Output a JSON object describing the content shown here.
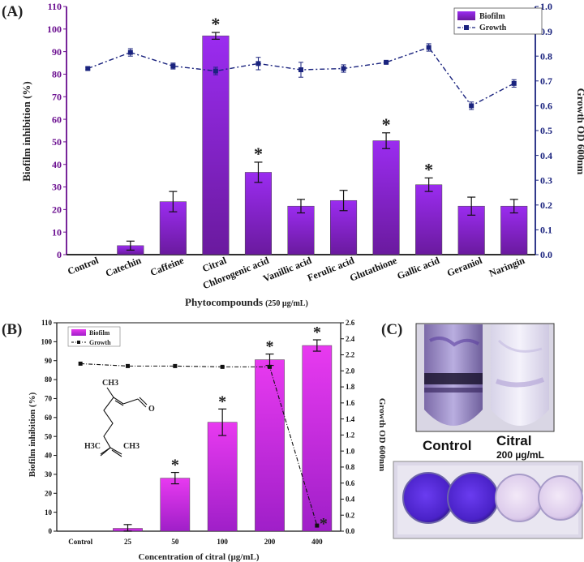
{
  "chart_data": [
    {
      "panel": "(A)",
      "type": "bar",
      "xlabel": "Phytocompounds",
      "xlabel_suffix": "(250 µg/mL)",
      "ylabel": "Biofilm inhibition (%)",
      "y2label": "Growth OD 600nm",
      "ylim": [
        0,
        110
      ],
      "y2lim": [
        0,
        1.0
      ],
      "yticks": [
        "0",
        "10",
        "20",
        "30",
        "40",
        "50",
        "60",
        "70",
        "80",
        "90",
        "100",
        "110"
      ],
      "y2ticks": [
        "0.0",
        "0.1",
        "0.2",
        "0.3",
        "0.4",
        "0.5",
        "0.6",
        "0.7",
        "0.8",
        "0.9",
        "1.0"
      ],
      "categories": [
        "Control",
        "Catechin",
        "Caffeine",
        "Citral",
        "Chlorogenic acid",
        "Vanillic acid",
        "Ferulic acid",
        "Glutathione",
        "Gallic acid",
        "Geraniol",
        "Naringin"
      ],
      "series": [
        {
          "name": "Biofilm",
          "kind": "bar",
          "values": [
            0,
            4,
            23.5,
            97,
            36.5,
            21.5,
            24,
            50.5,
            31,
            21.5,
            21.5
          ],
          "errors": [
            0,
            2,
            4.5,
            1.5,
            4.5,
            3,
            4.5,
            3.5,
            3,
            4,
            3
          ],
          "significant": [
            false,
            false,
            false,
            true,
            true,
            false,
            false,
            true,
            true,
            false,
            false
          ],
          "color": "#8a1fd8"
        },
        {
          "name": "Growth",
          "kind": "line",
          "values": [
            0.75,
            0.815,
            0.76,
            0.74,
            0.77,
            0.745,
            0.75,
            0.775,
            0.835,
            0.6,
            0.69
          ],
          "errors": [
            0.005,
            0.015,
            0.012,
            0.015,
            0.025,
            0.03,
            0.015,
            0.005,
            0.015,
            0.015,
            0.015
          ],
          "color": "#1a237e"
        }
      ],
      "significance_marker": "*"
    },
    {
      "panel": "(B)",
      "type": "bar",
      "xlabel": "Concentration of citral (µg/mL)",
      "ylabel": "Biofilm inhibition (%)",
      "y2label": "Growth OD 600nm",
      "ylim": [
        0,
        110
      ],
      "y2lim": [
        0,
        2.6
      ],
      "yticks": [
        "0",
        "10",
        "20",
        "30",
        "40",
        "50",
        "60",
        "70",
        "80",
        "90",
        "100",
        "110"
      ],
      "y2ticks": [
        "0.0",
        "0.2",
        "0.4",
        "0.6",
        "0.8",
        "1.0",
        "1.2",
        "1.4",
        "1.6",
        "1.8",
        "2.0",
        "2.2",
        "2.4",
        "2.6"
      ],
      "categories": [
        "Control",
        "25",
        "50",
        "100",
        "200",
        "400"
      ],
      "series": [
        {
          "name": "Biofilm",
          "kind": "bar",
          "values": [
            0,
            1.5,
            28,
            57.5,
            90.5,
            98
          ],
          "errors": [
            0,
            2,
            3,
            7,
            3,
            3
          ],
          "significant": [
            false,
            false,
            true,
            true,
            true,
            true
          ],
          "color": "#d41ad8"
        },
        {
          "name": "Growth",
          "kind": "line",
          "values": [
            2.09,
            2.06,
            2.06,
            2.05,
            2.05,
            0.07
          ],
          "color": "#111111"
        }
      ],
      "significance_marker": "*",
      "structure_labels": {
        "methyl_top": "CH3",
        "aldehyde_o": "O",
        "left_methyl": "H3C",
        "right_methyl": "CH3"
      }
    }
  ],
  "photo_panel": {
    "panel": "(C)",
    "control_label": "Control",
    "treatment_label": "Citral",
    "treatment_dose": "200 µg/mL"
  }
}
